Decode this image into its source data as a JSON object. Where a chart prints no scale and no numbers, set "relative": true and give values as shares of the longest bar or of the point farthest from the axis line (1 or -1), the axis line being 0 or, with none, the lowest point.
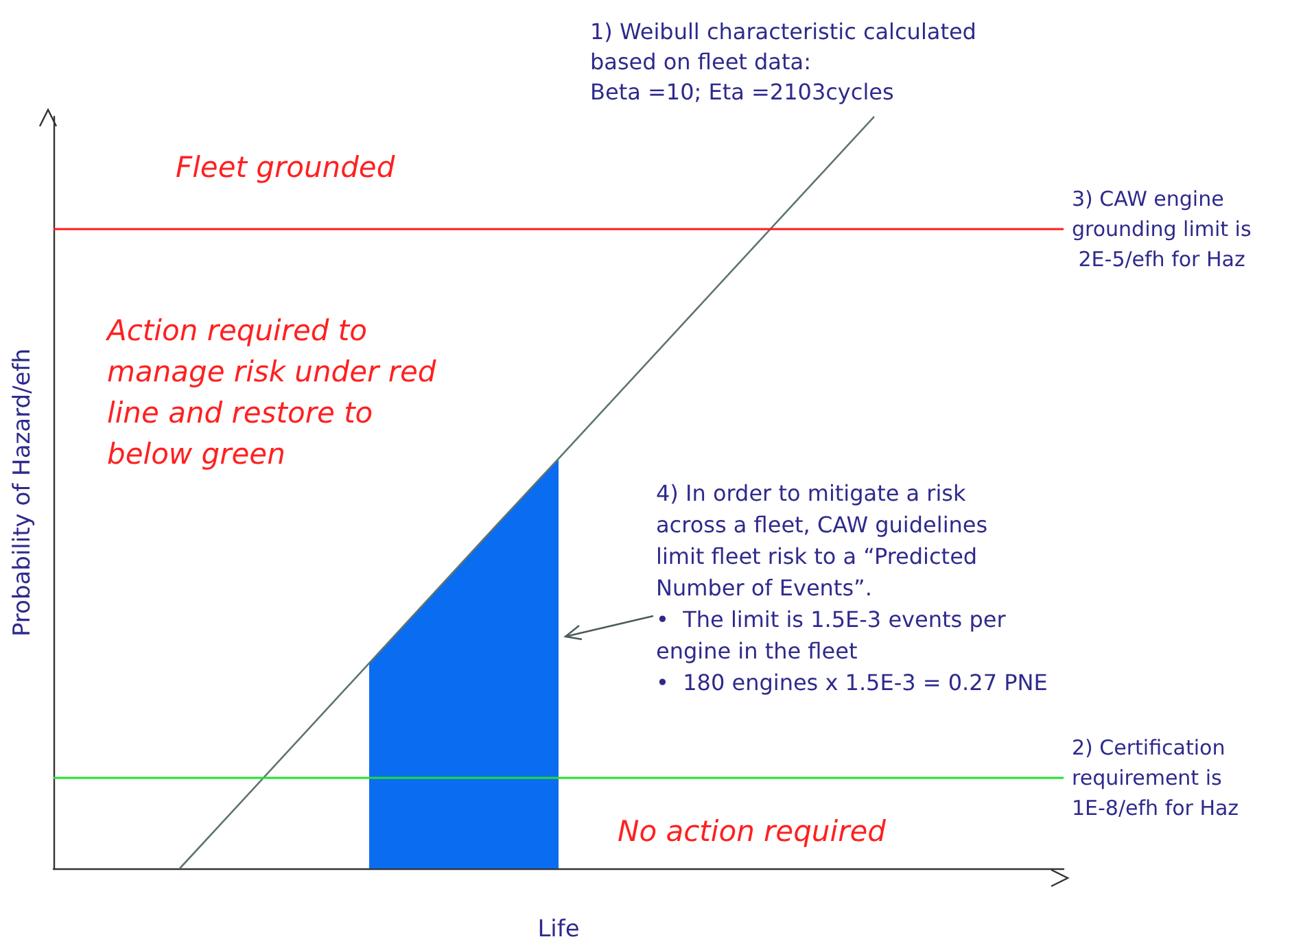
{
  "chart_data": {
    "type": "line",
    "relative": true,
    "xlabel": "Life",
    "ylabel": "Probability of Hazard/efh",
    "grid": false,
    "marker": "none",
    "categories": [
      null,
      null,
      null,
      null,
      null,
      null,
      null,
      null,
      null,
      null,
      null,
      null,
      null,
      null,
      null,
      null,
      null
    ],
    "series": [
      {
        "color": "#5f7373",
        "values": [
          null,
          null,
          0,
          0.091,
          0.182,
          0.273,
          0.364,
          0.455,
          0.545,
          0.636,
          0.727,
          0.818,
          0.909,
          1,
          null,
          null,
          null
        ]
      },
      {
        "type": "area",
        "color": "#0a6cf0",
        "values": [
          null,
          null,
          null,
          null,
          null,
          0.273,
          0.364,
          0.455,
          0.545,
          null,
          null,
          null,
          null,
          null,
          null,
          null,
          null
        ]
      }
    ],
    "ref_lines": [
      {
        "axis": "y",
        "value": 0.85,
        "color": "#ff1a1a",
        "label": "3) CAW engine grounding limit is 2E-5/efh for Haz"
      },
      {
        "axis": "y",
        "value": 0.124,
        "color": "#22e02e",
        "label": "2) Certification requirement is 1E-8/efh for Haz"
      }
    ],
    "annotations": [
      "1) Weibull characteristic calculated based on fleet data:\nBeta =10; Eta =2103cycles",
      "Fleet grounded",
      "Action required to manage risk under red line and restore to below green",
      "4) In order to mitigate a risk across a fleet, CAW guidelines limit fleet risk to a “Predicted Number of Events”.\n•  The limit is 1.5E-3 events per engine in the fleet\n•  180 engines x 1.5E-3 = 0.27 PNE",
      "No action required"
    ]
  }
}
